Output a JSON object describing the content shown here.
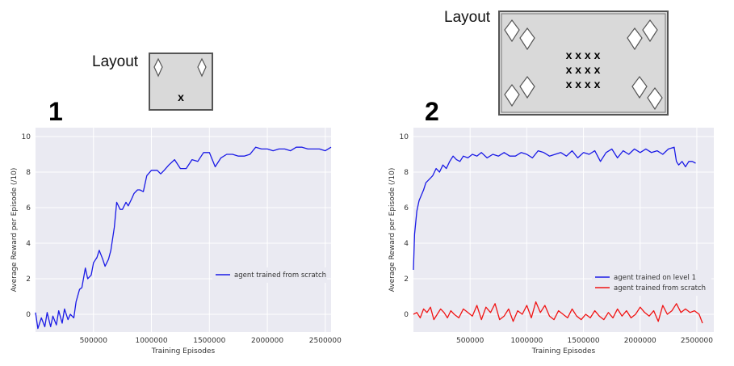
{
  "layouts": [
    {
      "label": "Layout",
      "mark": "x"
    },
    {
      "label": "Layout",
      "marks": [
        "x x x x",
        "x x x x",
        "x x x x"
      ]
    }
  ],
  "panels": [
    {
      "number": "1"
    },
    {
      "number": "2"
    }
  ],
  "colors": {
    "blue": "#1a1ae6",
    "red": "#f01414",
    "plot_bg": "#eaeaf2",
    "grid": "#ffffff"
  },
  "chart_data": [
    {
      "type": "line",
      "xlabel": "Training Episodes",
      "ylabel": "Average Reward per Episode (/10)",
      "xlim": [
        0,
        2550000
      ],
      "ylim": [
        -1,
        10.5
      ],
      "xticks": [
        500000,
        1000000,
        1500000,
        2000000,
        2500000
      ],
      "xtick_labels": [
        "500000",
        "1000000",
        "1500000",
        "2000000",
        "2500000"
      ],
      "yticks": [
        0,
        2,
        4,
        6,
        8,
        10
      ],
      "ytick_labels": [
        "0",
        "2",
        "4",
        "6",
        "8",
        "10"
      ],
      "legend_position": "center-right",
      "series": [
        {
          "name": "agent trained from scratch",
          "color": "#1a1ae6",
          "x": [
            0,
            20000,
            50000,
            80000,
            100000,
            130000,
            150000,
            180000,
            200000,
            230000,
            250000,
            280000,
            300000,
            330000,
            350000,
            380000,
            400000,
            430000,
            450000,
            480000,
            500000,
            530000,
            550000,
            580000,
            600000,
            630000,
            650000,
            680000,
            700000,
            730000,
            750000,
            780000,
            800000,
            830000,
            850000,
            880000,
            900000,
            930000,
            960000,
            1000000,
            1050000,
            1080000,
            1110000,
            1150000,
            1200000,
            1250000,
            1300000,
            1350000,
            1400000,
            1450000,
            1500000,
            1550000,
            1600000,
            1650000,
            1700000,
            1750000,
            1800000,
            1850000,
            1900000,
            1950000,
            2000000,
            2050000,
            2100000,
            2150000,
            2200000,
            2250000,
            2300000,
            2350000,
            2400000,
            2450000,
            2500000,
            2550000
          ],
          "y": [
            0.1,
            -0.8,
            -0.2,
            -0.7,
            0.1,
            -0.7,
            -0.1,
            -0.6,
            0.2,
            -0.5,
            0.3,
            -0.3,
            0.0,
            -0.2,
            0.7,
            1.4,
            1.5,
            2.6,
            2.0,
            2.2,
            2.9,
            3.2,
            3.6,
            3.1,
            2.7,
            3.1,
            3.6,
            4.9,
            6.3,
            5.9,
            5.9,
            6.3,
            6.1,
            6.5,
            6.8,
            7.0,
            7.0,
            6.9,
            7.8,
            8.1,
            8.1,
            7.9,
            8.1,
            8.4,
            8.7,
            8.2,
            8.2,
            8.7,
            8.6,
            9.1,
            9.1,
            8.3,
            8.8,
            9.0,
            9.0,
            8.9,
            8.9,
            9.0,
            9.4,
            9.3,
            9.3,
            9.2,
            9.3,
            9.3,
            9.2,
            9.4,
            9.4,
            9.3,
            9.3,
            9.3,
            9.2,
            9.4
          ]
        }
      ]
    },
    {
      "type": "line",
      "xlabel": "Training Episodes",
      "ylabel": "Average Reward per Episode (/10)",
      "xlim": [
        0,
        2650000
      ],
      "ylim": [
        -1,
        10.5
      ],
      "xticks": [
        500000,
        1000000,
        1500000,
        2000000,
        2500000
      ],
      "xtick_labels": [
        "500000",
        "1000000",
        "1500000",
        "2000000",
        "2500000"
      ],
      "yticks": [
        0,
        2,
        4,
        6,
        8,
        10
      ],
      "ytick_labels": [
        "0",
        "2",
        "4",
        "6",
        "8",
        "10"
      ],
      "legend_position": "lower-right",
      "series": [
        {
          "name": "agent trained on level 1",
          "color": "#1a1ae6",
          "x": [
            0,
            10000,
            30000,
            50000,
            70000,
            90000,
            110000,
            140000,
            170000,
            200000,
            230000,
            260000,
            290000,
            320000,
            350000,
            380000,
            410000,
            440000,
            480000,
            520000,
            560000,
            600000,
            650000,
            700000,
            750000,
            800000,
            850000,
            900000,
            950000,
            1000000,
            1050000,
            1100000,
            1150000,
            1200000,
            1250000,
            1300000,
            1350000,
            1400000,
            1450000,
            1500000,
            1550000,
            1600000,
            1650000,
            1700000,
            1750000,
            1800000,
            1850000,
            1900000,
            1950000,
            2000000,
            2050000,
            2100000,
            2150000,
            2200000,
            2250000,
            2300000,
            2320000,
            2340000,
            2370000,
            2400000,
            2430000,
            2460000,
            2490000
          ],
          "y": [
            2.5,
            4.5,
            5.8,
            6.4,
            6.7,
            7.0,
            7.4,
            7.6,
            7.8,
            8.2,
            8.0,
            8.4,
            8.2,
            8.6,
            8.9,
            8.7,
            8.6,
            8.9,
            8.8,
            9.0,
            8.9,
            9.1,
            8.8,
            9.0,
            8.9,
            9.1,
            8.9,
            8.9,
            9.1,
            9.0,
            8.8,
            9.2,
            9.1,
            8.9,
            9.0,
            9.1,
            8.9,
            9.2,
            8.8,
            9.1,
            9.0,
            9.2,
            8.6,
            9.1,
            9.3,
            8.8,
            9.2,
            9.0,
            9.3,
            9.1,
            9.3,
            9.1,
            9.2,
            9.0,
            9.3,
            9.4,
            8.6,
            8.4,
            8.6,
            8.3,
            8.6,
            8.6,
            8.5
          ]
        },
        {
          "name": "agent trained from scratch",
          "color": "#f01414",
          "x": [
            0,
            30000,
            60000,
            90000,
            120000,
            150000,
            180000,
            210000,
            240000,
            270000,
            300000,
            330000,
            360000,
            400000,
            440000,
            480000,
            520000,
            560000,
            600000,
            640000,
            680000,
            720000,
            760000,
            800000,
            840000,
            880000,
            920000,
            960000,
            1000000,
            1040000,
            1080000,
            1120000,
            1160000,
            1200000,
            1240000,
            1280000,
            1320000,
            1360000,
            1400000,
            1440000,
            1480000,
            1520000,
            1560000,
            1600000,
            1640000,
            1680000,
            1720000,
            1760000,
            1800000,
            1840000,
            1880000,
            1920000,
            1960000,
            2000000,
            2040000,
            2080000,
            2120000,
            2160000,
            2200000,
            2240000,
            2280000,
            2320000,
            2360000,
            2400000,
            2440000,
            2480000,
            2520000,
            2550000
          ],
          "y": [
            0.0,
            0.1,
            -0.2,
            0.3,
            0.1,
            0.4,
            -0.3,
            0.0,
            0.3,
            0.1,
            -0.2,
            0.2,
            0.0,
            -0.2,
            0.3,
            0.1,
            -0.1,
            0.5,
            -0.3,
            0.4,
            0.1,
            0.6,
            -0.3,
            -0.1,
            0.3,
            -0.4,
            0.2,
            0.0,
            0.5,
            -0.2,
            0.7,
            0.1,
            0.5,
            -0.1,
            -0.3,
            0.2,
            0.0,
            -0.2,
            0.3,
            -0.1,
            -0.3,
            0.0,
            -0.2,
            0.2,
            -0.1,
            -0.3,
            0.1,
            -0.2,
            0.3,
            -0.1,
            0.2,
            -0.2,
            0.0,
            0.4,
            0.1,
            -0.1,
            0.2,
            -0.4,
            0.5,
            0.0,
            0.2,
            0.6,
            0.1,
            0.3,
            0.1,
            0.2,
            0.0,
            -0.5
          ]
        }
      ]
    }
  ]
}
